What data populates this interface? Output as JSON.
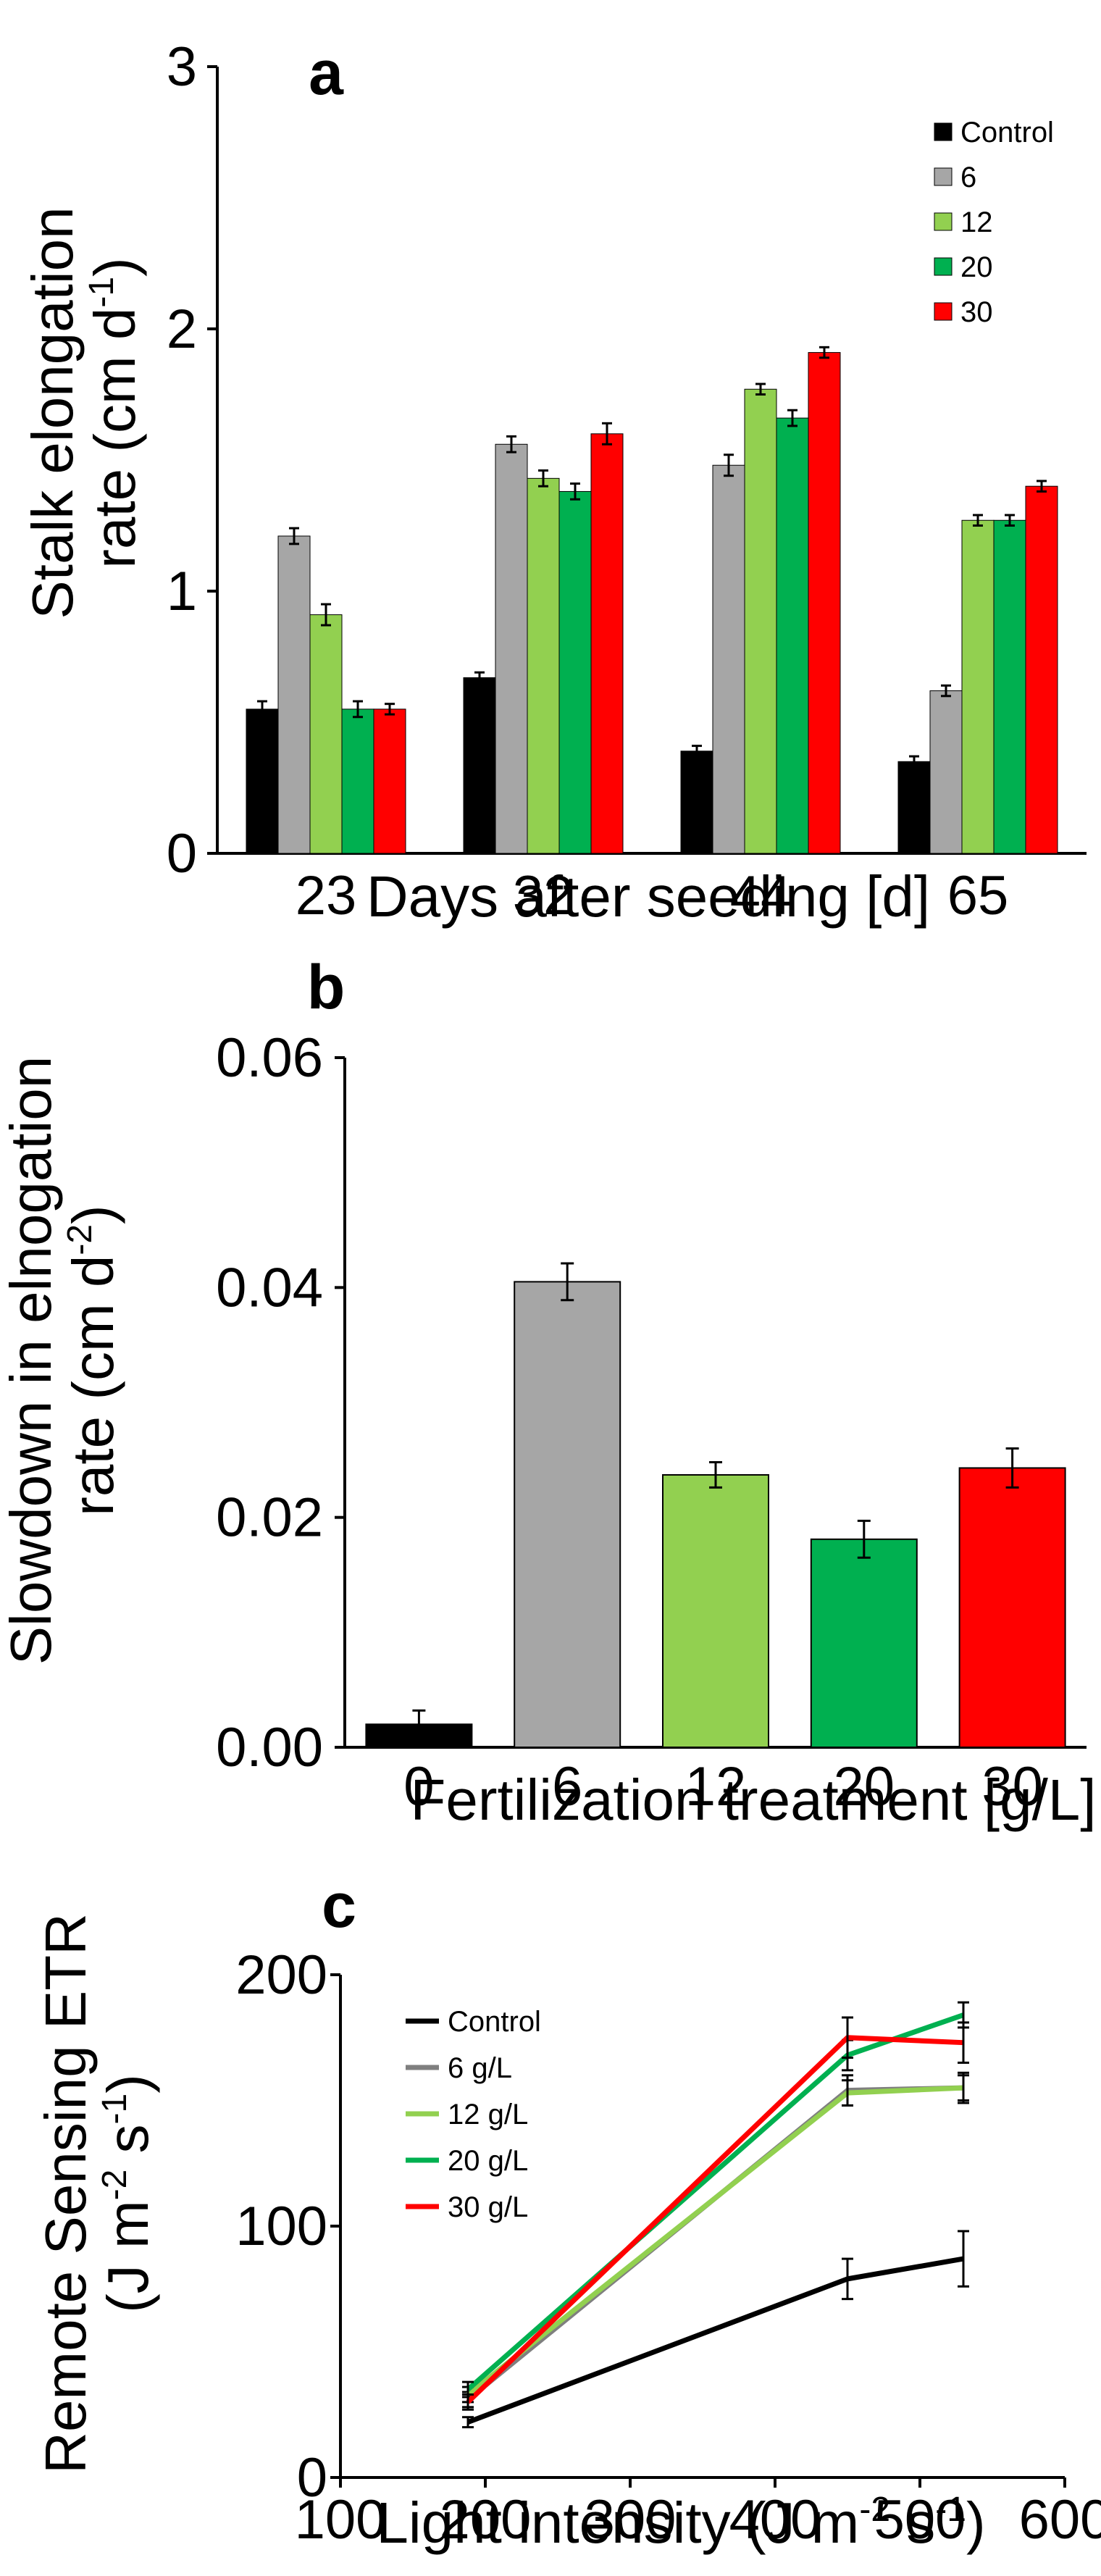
{
  "chart_data": [
    {
      "panel": "a",
      "type": "bar",
      "categories": [
        "23",
        "32",
        "44",
        "65"
      ],
      "ylabel_line1": "Stalk elongation",
      "ylabel_line2": "rate (cm d",
      "ylabel_sup": "-1",
      "ylabel_close": ")",
      "xlabel": "Days after seeding [d]",
      "ylim": [
        0,
        3
      ],
      "yticks": [
        "0",
        "1",
        "2",
        "3"
      ],
      "grid": false,
      "legend_position": "top-right",
      "series": [
        {
          "name": "Control",
          "color": "#000000",
          "values": [
            0.55,
            0.67,
            0.39,
            0.35
          ],
          "errors": [
            0.03,
            0.02,
            0.02,
            0.02
          ]
        },
        {
          "name": "6",
          "color": "#a6a6a6",
          "values": [
            1.21,
            1.56,
            1.48,
            0.62
          ],
          "errors": [
            0.03,
            0.03,
            0.04,
            0.02
          ]
        },
        {
          "name": "12",
          "color": "#92d050",
          "values": [
            0.91,
            1.43,
            1.77,
            1.27
          ],
          "errors": [
            0.04,
            0.03,
            0.02,
            0.02
          ]
        },
        {
          "name": "20",
          "color": "#00b050",
          "values": [
            0.55,
            1.38,
            1.66,
            1.27
          ],
          "errors": [
            0.03,
            0.03,
            0.03,
            0.02
          ]
        },
        {
          "name": "30",
          "color": "#ff0000",
          "values": [
            0.55,
            1.6,
            1.91,
            1.4
          ],
          "errors": [
            0.02,
            0.04,
            0.02,
            0.02
          ]
        }
      ]
    },
    {
      "panel": "b",
      "type": "bar",
      "categories": [
        "0",
        "6",
        "12",
        "20",
        "30"
      ],
      "values": [
        0.002,
        0.0405,
        0.0237,
        0.0181,
        0.0243
      ],
      "errors": [
        0.0012,
        0.0016,
        0.0011,
        0.0016,
        0.0017
      ],
      "colors": [
        "#000000",
        "#a6a6a6",
        "#92d050",
        "#00b050",
        "#ff0000"
      ],
      "ylabel_line1": "Slowdown in elnogation",
      "ylabel_line2": "rate (cm d",
      "ylabel_sup": "-2",
      "ylabel_close": ")",
      "xlabel": "Fertilization treatment [g/L]",
      "ylim": [
        0,
        0.06
      ],
      "yticks": [
        "0.00",
        "0.02",
        "0.04",
        "0.06"
      ],
      "grid": false
    },
    {
      "panel": "c",
      "type": "line",
      "x": [
        188,
        450,
        530
      ],
      "xlim": [
        100,
        600
      ],
      "xticks": [
        "100",
        "200",
        "300",
        "400",
        "500",
        "600"
      ],
      "ylim": [
        0,
        200
      ],
      "yticks": [
        "0",
        "100",
        "200"
      ],
      "ylabel_line1": "Remote Sensing ETR",
      "ylabel_line2_parts": [
        "(J m",
        "-2",
        " s",
        "-1",
        ")"
      ],
      "xlabel_parts": [
        "Light intensity (J m",
        "-2",
        " s",
        "-1",
        ")"
      ],
      "grid": false,
      "legend_position": "top-left",
      "series": [
        {
          "name": "Control",
          "color": "#000000",
          "values": [
            22,
            79,
            87
          ],
          "errors": [
            2,
            8,
            11
          ]
        },
        {
          "name": "6 g/L",
          "color": "#7f7f7f",
          "values": [
            31,
            154,
            155
          ],
          "errors": [
            3,
            6,
            6
          ]
        },
        {
          "name": "12 g/L",
          "color": "#92d050",
          "values": [
            33,
            153,
            155
          ],
          "errors": [
            3,
            5,
            5
          ]
        },
        {
          "name": "20 g/L",
          "color": "#00b050",
          "values": [
            35,
            168,
            184
          ],
          "errors": [
            3,
            6,
            5
          ]
        },
        {
          "name": "30 g/L",
          "color": "#ff0000",
          "values": [
            30,
            175,
            173
          ],
          "errors": [
            3,
            8,
            8
          ]
        }
      ]
    }
  ]
}
